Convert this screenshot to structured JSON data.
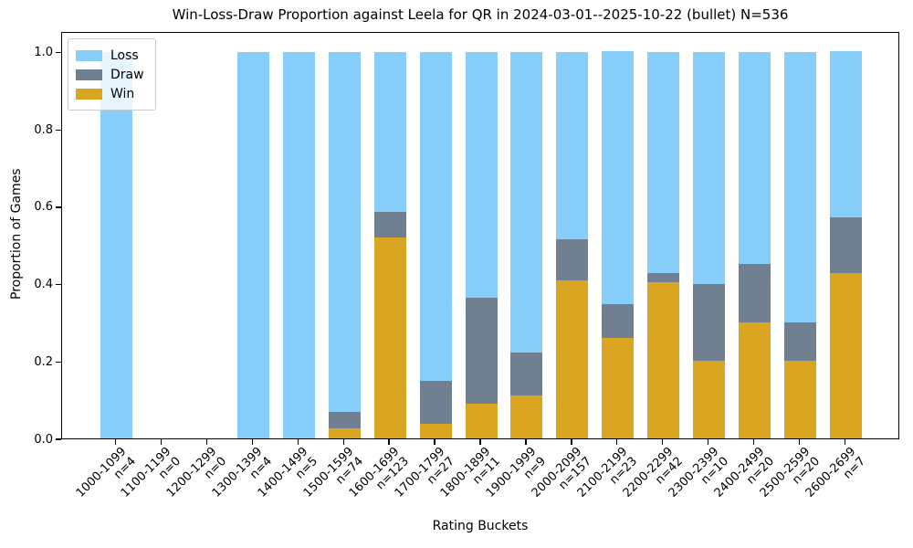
{
  "chart_data": {
    "type": "bar",
    "stacked": true,
    "title": "Win-Loss-Draw Proportion against Leela for QR in 2024-03-01--2025-10-22 (bullet) N=536",
    "xlabel": "Rating Buckets",
    "ylabel": "Proportion of Games",
    "total_games": 536,
    "ylim": [
      0,
      1.05
    ],
    "yticks": [
      0.0,
      0.2,
      0.4,
      0.6,
      0.8,
      1.0
    ],
    "grid": false,
    "count_prefix": "n=",
    "categories": [
      "1000-1099",
      "1100-1199",
      "1200-1299",
      "1300-1399",
      "1400-1499",
      "1500-1599",
      "1600-1699",
      "1700-1799",
      "1800-1899",
      "1900-1999",
      "2000-2099",
      "2100-2199",
      "2200-2299",
      "2300-2399",
      "2400-2499",
      "2500-2599",
      "2600-2699"
    ],
    "counts": [
      4,
      0,
      0,
      4,
      5,
      74,
      123,
      27,
      11,
      9,
      157,
      23,
      42,
      10,
      20,
      20,
      7
    ],
    "series": [
      {
        "name": "Win",
        "color": "#DAA520",
        "values": [
          0,
          0,
          0,
          0,
          0,
          0.027,
          0.5203,
          0.037,
          0.0909,
          0.1111,
          0.4076,
          0.2609,
          0.4048,
          0.2,
          0.3,
          0.2,
          0.4286
        ]
      },
      {
        "name": "Draw",
        "color": "#708090",
        "values": [
          0,
          0,
          0,
          0,
          0,
          0.0405,
          0.065,
          0.1111,
          0.2727,
          0.1111,
          0.1083,
          0.087,
          0.0238,
          0.2,
          0.15,
          0.1,
          0.1429
        ]
      },
      {
        "name": "Loss",
        "color": "#87CEFA",
        "values": [
          1,
          0,
          0,
          1,
          1,
          0.9324,
          0.4146,
          0.8519,
          0.6364,
          0.7778,
          0.4841,
          0.6522,
          0.5714,
          0.6,
          0.55,
          0.7,
          0.4286
        ]
      }
    ],
    "legend": {
      "position": "upper left",
      "entries": [
        {
          "label": "Loss",
          "color": "#87CEFA"
        },
        {
          "label": "Draw",
          "color": "#708090"
        },
        {
          "label": "Win",
          "color": "#DAA520"
        }
      ]
    }
  }
}
